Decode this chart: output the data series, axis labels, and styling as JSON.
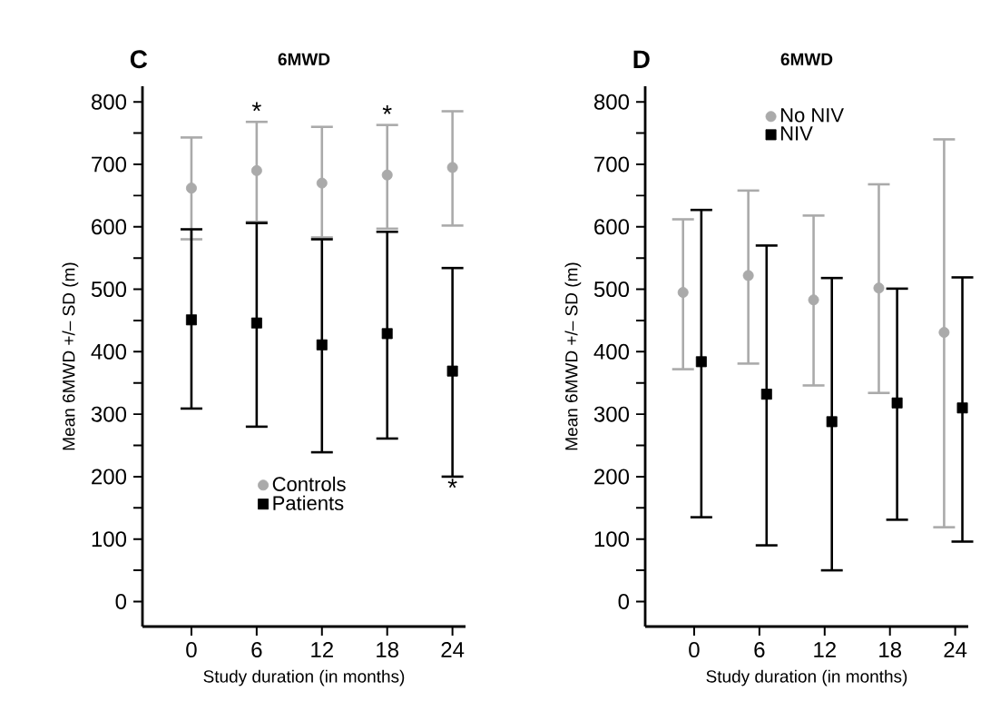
{
  "chart_data": [
    {
      "type": "scatter",
      "title": "6MWD",
      "annotations": [
        "C",
        {
          "text": "*",
          "x": "6",
          "y": 768
        },
        {
          "text": "*",
          "x": "18",
          "y": 763
        },
        {
          "text": "*",
          "x": "24",
          "y": 200
        }
      ],
      "xlabel": "Study duration (in months)",
      "ylabel": "Mean 6MWD +/– SD (m)",
      "categories": [
        "0",
        "6",
        "12",
        "18",
        "24"
      ],
      "ylim": [
        -40,
        825
      ],
      "yticks": [
        0,
        100,
        200,
        300,
        400,
        500,
        600,
        700,
        800
      ],
      "legend": "bottom",
      "series": [
        {
          "name": "Controls",
          "color": "#aaaaaa",
          "marker": "circle",
          "values": [
            662,
            690,
            670,
            683,
            695
          ],
          "errors": [
            [
              580,
              743
            ],
            [
              608,
              768
            ],
            [
              583,
              760
            ],
            [
              597,
              763
            ],
            [
              602,
              785
            ]
          ]
        },
        {
          "name": "Patients",
          "color": "#000000",
          "marker": "square",
          "values": [
            451,
            446,
            411,
            429,
            369
          ],
          "errors": [
            [
              309,
              596
            ],
            [
              280,
              606
            ],
            [
              239,
              580
            ],
            [
              261,
              592
            ],
            [
              200,
              534
            ]
          ]
        }
      ]
    },
    {
      "type": "scatter",
      "title": "6MWD",
      "annotations": [
        "D"
      ],
      "xlabel": "Study duration (in months)",
      "ylabel": "Mean 6MWD +/– SD (m)",
      "categories": [
        "0",
        "6",
        "12",
        "18",
        "24"
      ],
      "ylim": [
        -40,
        825
      ],
      "yticks": [
        0,
        100,
        200,
        300,
        400,
        500,
        600,
        700,
        800
      ],
      "legend": "top",
      "series": [
        {
          "name": "No NIV",
          "color": "#aaaaaa",
          "marker": "circle",
          "values": [
            495,
            522,
            483,
            502,
            431
          ],
          "errors": [
            [
              372,
              612
            ],
            [
              381,
              658
            ],
            [
              346,
              618
            ],
            [
              334,
              668
            ],
            [
              119,
              740
            ]
          ]
        },
        {
          "name": "NIV",
          "color": "#000000",
          "marker": "square",
          "values": [
            384,
            332,
            288,
            318,
            310
          ],
          "errors": [
            [
              135,
              627
            ],
            [
              90,
              570
            ],
            [
              50,
              518
            ],
            [
              131,
              501
            ],
            [
              96,
              519
            ]
          ]
        }
      ]
    }
  ]
}
